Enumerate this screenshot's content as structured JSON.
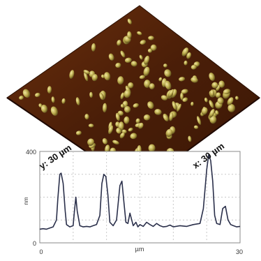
{
  "afm": {
    "dim_y_label": "y: 30 µm",
    "dim_x_label": "x: 30 µm",
    "surface_color": "#4a1e08",
    "particle_color": "#b8a84a",
    "particle_highlight": "#f2e8a0"
  },
  "profile": {
    "ylabel": "nm",
    "xlabel": "µm",
    "y_ticks": [
      "400",
      "0"
    ],
    "x_ticks": [
      "0",
      "30"
    ],
    "line_color": "#2a2f4a"
  },
  "chart_data": {
    "type": "line",
    "title": "",
    "xlabel": "µm",
    "ylabel": "nm",
    "xlim": [
      0,
      30
    ],
    "ylim": [
      0,
      400
    ],
    "grid": true,
    "x": [
      0,
      0.5,
      1,
      1.5,
      2,
      2.5,
      2.7,
      3,
      3.2,
      3.5,
      3.8,
      4,
      4.5,
      5,
      5.2,
      5.4,
      5.6,
      6,
      6.5,
      7,
      7.5,
      8,
      8.5,
      9,
      9.3,
      9.6,
      9.9,
      10.2,
      10.5,
      11,
      11.5,
      12,
      12.3,
      12.6,
      12.9,
      13.2,
      13.5,
      14,
      14.4,
      14.7,
      15,
      15.5,
      16,
      16.5,
      17,
      17.5,
      18,
      18.5,
      19,
      19.5,
      20,
      21,
      22,
      23,
      24,
      24.5,
      25,
      25.3,
      25.6,
      25.9,
      26.2,
      26.5,
      27,
      27.4,
      27.8,
      28.2,
      28.6,
      29,
      29.5,
      30
    ],
    "y": [
      60,
      62,
      60,
      65,
      70,
      100,
      190,
      300,
      305,
      260,
      140,
      80,
      70,
      75,
      140,
      200,
      140,
      75,
      70,
      72,
      70,
      75,
      80,
      120,
      260,
      300,
      290,
      210,
      90,
      75,
      100,
      250,
      270,
      180,
      90,
      85,
      130,
      75,
      90,
      70,
      80,
      72,
      90,
      80,
      72,
      85,
      75,
      70,
      72,
      78,
      70,
      75,
      72,
      80,
      85,
      150,
      320,
      385,
      360,
      270,
      120,
      85,
      80,
      150,
      160,
      100,
      80,
      75,
      70,
      72
    ]
  }
}
